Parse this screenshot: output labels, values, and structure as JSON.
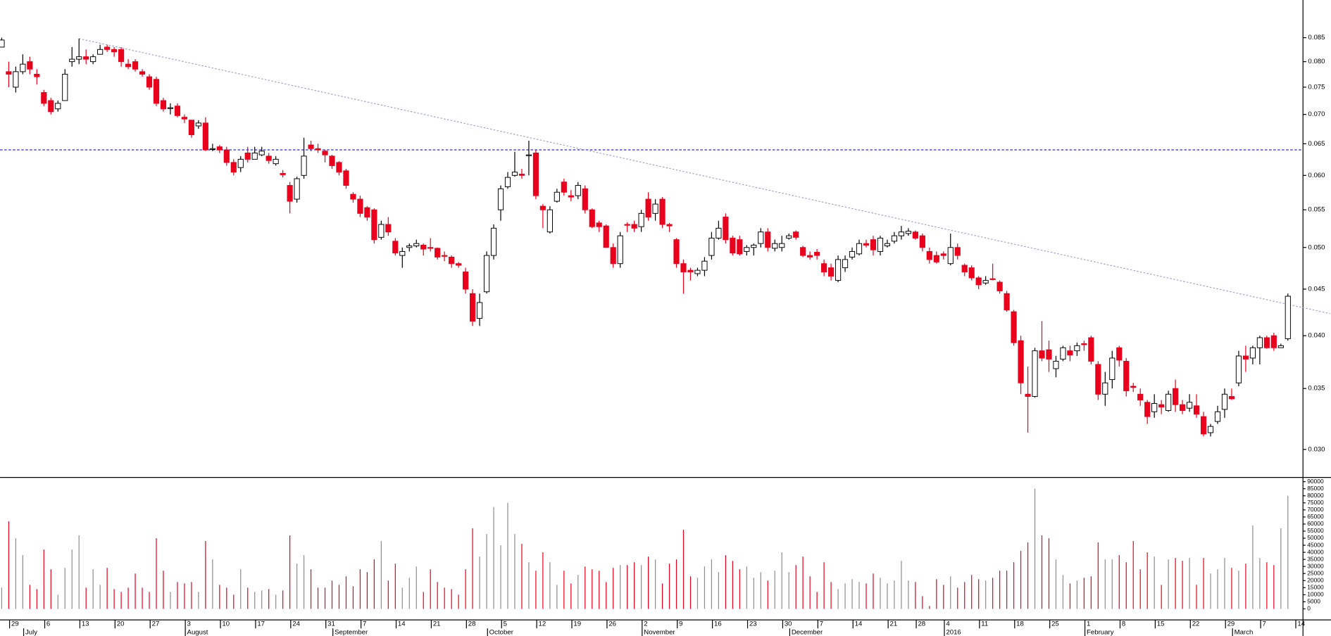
{
  "chart_data": {
    "type": "candlestick",
    "log_scale": true,
    "up_color": "#ffffff",
    "down_color": "#e8001c",
    "volume_up_color": "#8c8c8c",
    "ylim": [
      0.02795,
      0.0935
    ],
    "yticks": [
      {
        "value": 0.03,
        "label": "0.030"
      },
      0.035,
      {
        "value": 0.04,
        "label": "0.040"
      },
      0.045,
      {
        "value": 0.05,
        "label": "0.050"
      },
      0.055,
      {
        "value": 0.06,
        "label": "0.060"
      },
      0.065,
      {
        "value": 0.07,
        "label": "0.070"
      },
      0.075,
      {
        "value": 0.08,
        "label": "0.080"
      },
      0.085
    ],
    "volume_ylim": [
      0,
      90000
    ],
    "volume_yticks": [
      0,
      5000,
      10000,
      15000,
      20000,
      25000,
      30000,
      35000,
      40000,
      45000,
      50000,
      55000,
      60000,
      65000,
      70000,
      75000,
      80000,
      85000,
      90000
    ],
    "hline": {
      "value": 0.064,
      "color": "#2a2ad0"
    },
    "trendline": {
      "x": [
        11,
        189
      ],
      "y": [
        0.0848,
        0.0423
      ],
      "color": "#a0a0c8"
    },
    "categories": [
      null,
      "29",
      null,
      null,
      null,
      null,
      "6",
      null,
      null,
      null,
      null,
      "13",
      null,
      null,
      null,
      null,
      "20",
      null,
      null,
      null,
      null,
      "27",
      null,
      null,
      null,
      null,
      "3",
      null,
      null,
      null,
      null,
      "10",
      null,
      null,
      null,
      null,
      "17",
      null,
      null,
      null,
      null,
      "24",
      null,
      null,
      null,
      null,
      "31",
      null,
      null,
      null,
      null,
      "7",
      null,
      null,
      null,
      null,
      "14",
      null,
      null,
      null,
      null,
      "21",
      null,
      null,
      null,
      null,
      "28",
      null,
      null,
      null,
      null,
      "5",
      null,
      null,
      null,
      null,
      "12",
      null,
      null,
      null,
      null,
      "19",
      null,
      null,
      null,
      null,
      "26",
      null,
      null,
      null,
      null,
      "2",
      null,
      null,
      null,
      null,
      "9",
      null,
      null,
      null,
      null,
      "16",
      null,
      null,
      null,
      null,
      "23",
      null,
      null,
      null,
      null,
      "30",
      null,
      null,
      null,
      null,
      "7",
      null,
      null,
      null,
      null,
      "14",
      null,
      null,
      null,
      null,
      "21",
      null,
      null,
      null,
      "28",
      null,
      null,
      null,
      "4",
      null,
      null,
      null,
      null,
      "11",
      null,
      null,
      null,
      null,
      "18",
      null,
      null,
      null,
      null,
      "25",
      null,
      null,
      null,
      null,
      "1",
      null,
      null,
      null,
      null,
      "8",
      null,
      null,
      null,
      null,
      "15",
      null,
      null,
      null,
      null,
      "22",
      null,
      null,
      null,
      null,
      "29",
      null,
      null,
      null,
      null,
      "7",
      null,
      null,
      null,
      null,
      "14"
    ],
    "months": [
      null,
      null,
      null,
      "July",
      null,
      null,
      null,
      null,
      null,
      null,
      null,
      null,
      null,
      null,
      null,
      null,
      null,
      null,
      null,
      null,
      null,
      null,
      null,
      null,
      null,
      null,
      "August",
      null,
      null,
      null,
      null,
      null,
      null,
      null,
      null,
      null,
      null,
      null,
      null,
      null,
      null,
      null,
      null,
      null,
      null,
      null,
      null,
      "September",
      null,
      null,
      null,
      null,
      null,
      null,
      null,
      null,
      null,
      null,
      null,
      null,
      null,
      null,
      null,
      null,
      null,
      null,
      null,
      null,
      null,
      "October",
      null,
      null,
      null,
      null,
      null,
      null,
      null,
      null,
      null,
      null,
      null,
      null,
      null,
      null,
      null,
      null,
      null,
      null,
      null,
      null,
      null,
      "November",
      null,
      null,
      null,
      null,
      null,
      null,
      null,
      null,
      null,
      null,
      null,
      null,
      null,
      null,
      null,
      null,
      null,
      null,
      null,
      null,
      "December",
      null,
      null,
      null,
      null,
      null,
      null,
      null,
      null,
      null,
      null,
      null,
      null,
      null,
      null,
      null,
      null,
      null,
      null,
      null,
      null,
      null,
      "2016",
      null,
      null,
      null,
      null,
      null,
      null,
      null,
      null,
      null,
      null,
      null,
      null,
      null,
      null,
      null,
      null,
      null,
      null,
      null,
      "February",
      null,
      null,
      null,
      null,
      null,
      null,
      null,
      null,
      null,
      null,
      null,
      null,
      null,
      null,
      null,
      null,
      null,
      null,
      null,
      null,
      "March",
      null,
      null,
      null,
      null,
      null,
      null,
      null,
      null,
      null
    ],
    "open": [
      0.083,
      0.078,
      0.075,
      0.078,
      0.08,
      0.0775,
      0.074,
      0.0725,
      0.071,
      0.0725,
      0.08,
      0.0805,
      0.081,
      0.08,
      0.0815,
      0.083,
      0.0825,
      0.0825,
      0.0795,
      0.08,
      0.078,
      0.077,
      0.0765,
      0.0725,
      0.0712,
      0.0715,
      0.0695,
      0.069,
      0.068,
      0.0685,
      0.0642,
      0.0645,
      0.064,
      0.062,
      0.0612,
      0.0635,
      0.0625,
      0.0632,
      0.063,
      0.0618,
      0.0603,
      0.0585,
      0.0565,
      0.06,
      0.0648,
      0.0642,
      0.0638,
      0.063,
      0.062,
      0.0607,
      0.0572,
      0.0565,
      0.0553,
      0.055,
      0.0513,
      0.053,
      0.0508,
      0.049,
      0.05,
      0.0502,
      0.0503,
      0.05,
      0.0499,
      0.049,
      0.0488,
      0.048,
      0.047,
      0.0445,
      0.0418,
      0.0447,
      0.049,
      0.055,
      0.0583,
      0.06,
      0.0602,
      0.0632,
      0.0635,
      0.0555,
      0.052,
      0.0562,
      0.059,
      0.057,
      0.057,
      0.058,
      0.055,
      0.0532,
      0.0528,
      0.05,
      0.048,
      0.053,
      0.053,
      0.0527,
      0.0565,
      0.0545,
      0.0565,
      0.053,
      0.051,
      0.048,
      0.0472,
      0.0468,
      0.0472,
      0.049,
      0.0512,
      0.054,
      0.0512,
      0.051,
      0.0495,
      0.05,
      0.0505,
      0.052,
      0.0499,
      0.05,
      0.0512,
      0.052,
      0.05,
      0.049,
      0.0494,
      0.048,
      0.0475,
      0.046,
      0.0475,
      0.0488,
      0.0492,
      0.0505,
      0.051,
      0.0495,
      0.0502,
      0.0508,
      0.0515,
      0.0518,
      0.052,
      0.0515,
      0.0495,
      0.049,
      0.0492,
      0.048,
      0.05,
      0.0478,
      0.0475,
      0.0463,
      0.0457,
      0.0462,
      0.0458,
      0.0445,
      0.0425,
      0.0395,
      0.0345,
      0.0343,
      0.0385,
      0.0386,
      0.0368,
      0.0377,
      0.0385,
      0.0385,
      0.0392,
      0.0398,
      0.0372,
      0.0345,
      0.0358,
      0.0388,
      0.0375,
      0.0352,
      0.0345,
      0.0338,
      0.033,
      0.0336,
      0.0331,
      0.035,
      0.0336,
      0.0333,
      0.0335,
      0.0326,
      0.0313,
      0.0322,
      0.0332,
      0.0343,
      0.0355,
      0.038,
      0.0378,
      0.0388,
      0.0398,
      0.04,
      0.0388,
      0.0397,
      null
    ],
    "high": [
      0.085,
      0.08,
      0.079,
      0.0815,
      0.081,
      0.0785,
      0.0745,
      0.073,
      0.0725,
      0.0785,
      0.083,
      0.0848,
      0.0825,
      0.0815,
      0.0835,
      0.0835,
      0.083,
      0.083,
      0.0805,
      0.0805,
      0.0785,
      0.0775,
      0.077,
      0.073,
      0.072,
      0.072,
      0.07,
      0.069,
      0.069,
      0.0695,
      0.065,
      0.0648,
      0.0645,
      0.0625,
      0.063,
      0.0645,
      0.0645,
      0.0645,
      0.0635,
      0.063,
      0.0608,
      0.059,
      0.0598,
      0.066,
      0.0655,
      0.065,
      0.064,
      0.0632,
      0.0622,
      0.061,
      0.0575,
      0.057,
      0.0555,
      0.0552,
      0.0535,
      0.054,
      0.0512,
      0.05,
      0.0505,
      0.051,
      0.0505,
      0.0512,
      0.05,
      0.0495,
      0.049,
      0.0482,
      0.0475,
      0.045,
      0.0445,
      0.0495,
      0.053,
      0.0585,
      0.0605,
      0.0637,
      0.061,
      0.0655,
      0.064,
      0.0558,
      0.0555,
      0.058,
      0.0595,
      0.0578,
      0.059,
      0.0585,
      0.0552,
      0.0535,
      0.053,
      0.0505,
      0.052,
      0.0533,
      0.0535,
      0.055,
      0.0575,
      0.0565,
      0.0568,
      0.0532,
      0.0512,
      0.0485,
      0.0475,
      0.0475,
      0.0488,
      0.052,
      0.0535,
      0.0545,
      0.0515,
      0.0515,
      0.0503,
      0.0505,
      0.0525,
      0.0525,
      0.051,
      0.0515,
      0.0518,
      0.0522,
      0.0502,
      0.0495,
      0.0498,
      0.0485,
      0.048,
      0.049,
      0.049,
      0.05,
      0.051,
      0.051,
      0.0515,
      0.0515,
      0.051,
      0.052,
      0.0528,
      0.0525,
      0.0522,
      0.0518,
      0.05,
      0.0495,
      0.0495,
      0.0518,
      0.0505,
      0.048,
      0.0478,
      0.0465,
      0.0465,
      0.048,
      0.046,
      0.0448,
      0.0427,
      0.04,
      0.037,
      0.0388,
      0.0415,
      0.0395,
      0.038,
      0.039,
      0.039,
      0.0393,
      0.0395,
      0.04,
      0.0375,
      0.0365,
      0.0385,
      0.039,
      0.0378,
      0.0355,
      0.035,
      0.034,
      0.0345,
      0.034,
      0.0348,
      0.0358,
      0.034,
      0.0345,
      0.0345,
      0.033,
      0.032,
      0.0335,
      0.035,
      0.035,
      0.0385,
      0.039,
      0.039,
      0.04,
      0.04,
      0.0403,
      0.0392,
      0.0445,
      null
    ],
    "low": [
      0.0835,
      0.075,
      0.074,
      0.0775,
      0.0775,
      0.0755,
      0.0715,
      0.07,
      0.0705,
      0.0725,
      0.079,
      0.0795,
      0.0795,
      0.0795,
      0.0815,
      0.082,
      0.081,
      0.079,
      0.0785,
      0.078,
      0.077,
      0.0745,
      0.0715,
      0.0705,
      0.07,
      0.0695,
      0.0685,
      0.066,
      0.0675,
      0.0638,
      0.0638,
      0.0635,
      0.0615,
      0.06,
      0.0605,
      0.062,
      0.0625,
      0.063,
      0.0618,
      0.0615,
      0.0597,
      0.0545,
      0.056,
      0.0595,
      0.0638,
      0.0635,
      0.062,
      0.061,
      0.06,
      0.058,
      0.056,
      0.054,
      0.0535,
      0.0505,
      0.051,
      0.0515,
      0.049,
      0.0475,
      0.0495,
      0.05,
      0.049,
      0.0495,
      0.0485,
      0.0483,
      0.0475,
      0.0475,
      0.0445,
      0.041,
      0.041,
      0.0445,
      0.0485,
      0.0535,
      0.058,
      0.0598,
      0.0595,
      0.06,
      0.0565,
      0.0525,
      0.0518,
      0.056,
      0.057,
      0.0562,
      0.0565,
      0.0545,
      0.0525,
      0.052,
      0.05,
      0.0475,
      0.0475,
      0.052,
      0.052,
      0.052,
      0.0535,
      0.0535,
      0.0525,
      0.052,
      0.0475,
      0.0445,
      0.046,
      0.0465,
      0.0465,
      0.0485,
      0.051,
      0.0505,
      0.049,
      0.049,
      0.049,
      0.049,
      0.05,
      0.0495,
      0.0495,
      0.0495,
      0.051,
      0.051,
      0.0488,
      0.0485,
      0.0485,
      0.0465,
      0.046,
      0.0458,
      0.047,
      0.0485,
      0.049,
      0.05,
      0.049,
      0.049,
      0.05,
      0.0505,
      0.051,
      0.0515,
      0.051,
      0.0495,
      0.048,
      0.048,
      0.0485,
      0.0478,
      0.0485,
      0.0465,
      0.046,
      0.045,
      0.0455,
      0.046,
      0.0445,
      0.0425,
      0.039,
      0.0345,
      0.0313,
      0.0342,
      0.0375,
      0.0365,
      0.036,
      0.0375,
      0.0375,
      0.038,
      0.0385,
      0.0372,
      0.034,
      0.0335,
      0.035,
      0.037,
      0.0343,
      0.0347,
      0.0335,
      0.032,
      0.0325,
      0.0328,
      0.033,
      0.033,
      0.0328,
      0.033,
      0.0325,
      0.031,
      0.031,
      0.032,
      0.0325,
      0.034,
      0.0352,
      0.0365,
      0.0372,
      0.0372,
      0.0387,
      0.0385,
      0.0388,
      0.0395,
      null
    ],
    "close": [
      0.0845,
      0.0775,
      0.078,
      0.0795,
      0.0785,
      0.077,
      0.072,
      0.0705,
      0.072,
      0.0775,
      0.0805,
      0.081,
      0.0805,
      0.081,
      0.0825,
      0.0825,
      0.082,
      0.08,
      0.079,
      0.0785,
      0.0775,
      0.075,
      0.072,
      0.071,
      0.0712,
      0.0698,
      0.0692,
      0.0665,
      0.0685,
      0.064,
      0.0642,
      0.064,
      0.062,
      0.0605,
      0.0625,
      0.0625,
      0.0635,
      0.0638,
      0.0623,
      0.0625,
      0.0601,
      0.0562,
      0.0595,
      0.063,
      0.0642,
      0.064,
      0.0632,
      0.0615,
      0.0605,
      0.0585,
      0.0565,
      0.0545,
      0.054,
      0.051,
      0.053,
      0.052,
      0.0493,
      0.0495,
      0.0502,
      0.0505,
      0.0498,
      0.0499,
      0.0488,
      0.0489,
      0.048,
      0.0478,
      0.045,
      0.0415,
      0.0435,
      0.049,
      0.0525,
      0.058,
      0.0597,
      0.0605,
      0.06,
      0.0632,
      0.057,
      0.055,
      0.055,
      0.0575,
      0.0575,
      0.0568,
      0.0585,
      0.055,
      0.0527,
      0.0527,
      0.05,
      0.048,
      0.0515,
      0.0529,
      0.0525,
      0.0545,
      0.054,
      0.0558,
      0.053,
      0.0528,
      0.048,
      0.047,
      0.047,
      0.0472,
      0.0483,
      0.0512,
      0.0525,
      0.051,
      0.0493,
      0.0492,
      0.05,
      0.0503,
      0.052,
      0.05,
      0.0505,
      0.0505,
      0.0515,
      0.0513,
      0.049,
      0.0488,
      0.049,
      0.047,
      0.0465,
      0.0485,
      0.0485,
      0.0495,
      0.0505,
      0.0503,
      0.0497,
      0.0512,
      0.0505,
      0.0515,
      0.052,
      0.0521,
      0.0512,
      0.05,
      0.0485,
      0.0482,
      0.049,
      0.05,
      0.049,
      0.047,
      0.0463,
      0.0455,
      0.046,
      0.0461,
      0.0448,
      0.0427,
      0.0393,
      0.0355,
      0.0343,
      0.0385,
      0.0378,
      0.0377,
      0.0375,
      0.0388,
      0.0381,
      0.039,
      0.0391,
      0.0375,
      0.0345,
      0.0355,
      0.0378,
      0.0376,
      0.0348,
      0.0351,
      0.034,
      0.0326,
      0.0337,
      0.0334,
      0.0345,
      0.0336,
      0.0331,
      0.0338,
      0.0328,
      0.0312,
      0.0318,
      0.033,
      0.0345,
      0.0341,
      0.038,
      0.0377,
      0.0388,
      0.0398,
      0.0388,
      0.0388,
      0.039,
      0.0442,
      null
    ],
    "volume": [
      15000,
      62000,
      50000,
      38000,
      17000,
      14000,
      42000,
      28000,
      10000,
      29000,
      42000,
      52000,
      15000,
      28000,
      17000,
      29000,
      14000,
      12000,
      15000,
      25000,
      15000,
      12000,
      50000,
      27000,
      12000,
      19000,
      18000,
      19000,
      12000,
      48000,
      35000,
      17000,
      15000,
      10000,
      28000,
      15000,
      12000,
      13000,
      14000,
      10000,
      13000,
      52000,
      32000,
      38000,
      28000,
      15000,
      15000,
      20000,
      17000,
      23000,
      16000,
      28000,
      26000,
      35000,
      48000,
      20000,
      32000,
      15000,
      22000,
      30000,
      12000,
      28000,
      19000,
      15000,
      14000,
      10000,
      28000,
      57000,
      37000,
      53000,
      72000,
      45000,
      75000,
      53000,
      46000,
      33000,
      27000,
      40000,
      33000,
      17000,
      27000,
      18000,
      24000,
      30000,
      28000,
      27000,
      19000,
      29000,
      31000,
      31000,
      33000,
      31000,
      37000,
      35000,
      18000,
      32000,
      35000,
      56000,
      23000,
      22000,
      30000,
      35000,
      26000,
      38000,
      34000,
      28000,
      30000,
      22000,
      26000,
      20000,
      27000,
      40000,
      26000,
      31000,
      37000,
      23000,
      12000,
      33000,
      19000,
      14000,
      18000,
      21000,
      19000,
      18000,
      25000,
      22000,
      18000,
      20000,
      34000,
      20000,
      19000,
      9000,
      2000,
      21000,
      17000,
      23000,
      15000,
      19000,
      24000,
      21000,
      20000,
      22000,
      27000,
      27000,
      33000,
      41000,
      47000,
      85000,
      52000,
      50000,
      35000,
      24000,
      18000,
      20000,
      22000,
      23000,
      47000,
      35000,
      35000,
      38000,
      33000,
      48000,
      28000,
      40000,
      37000,
      17000,
      35000,
      36000,
      34000,
      36000,
      17000,
      36000,
      25000,
      28000,
      36000,
      29000,
      27000,
      32000,
      59000,
      36000,
      33000,
      31000,
      57000,
      80000,
      null
    ]
  }
}
